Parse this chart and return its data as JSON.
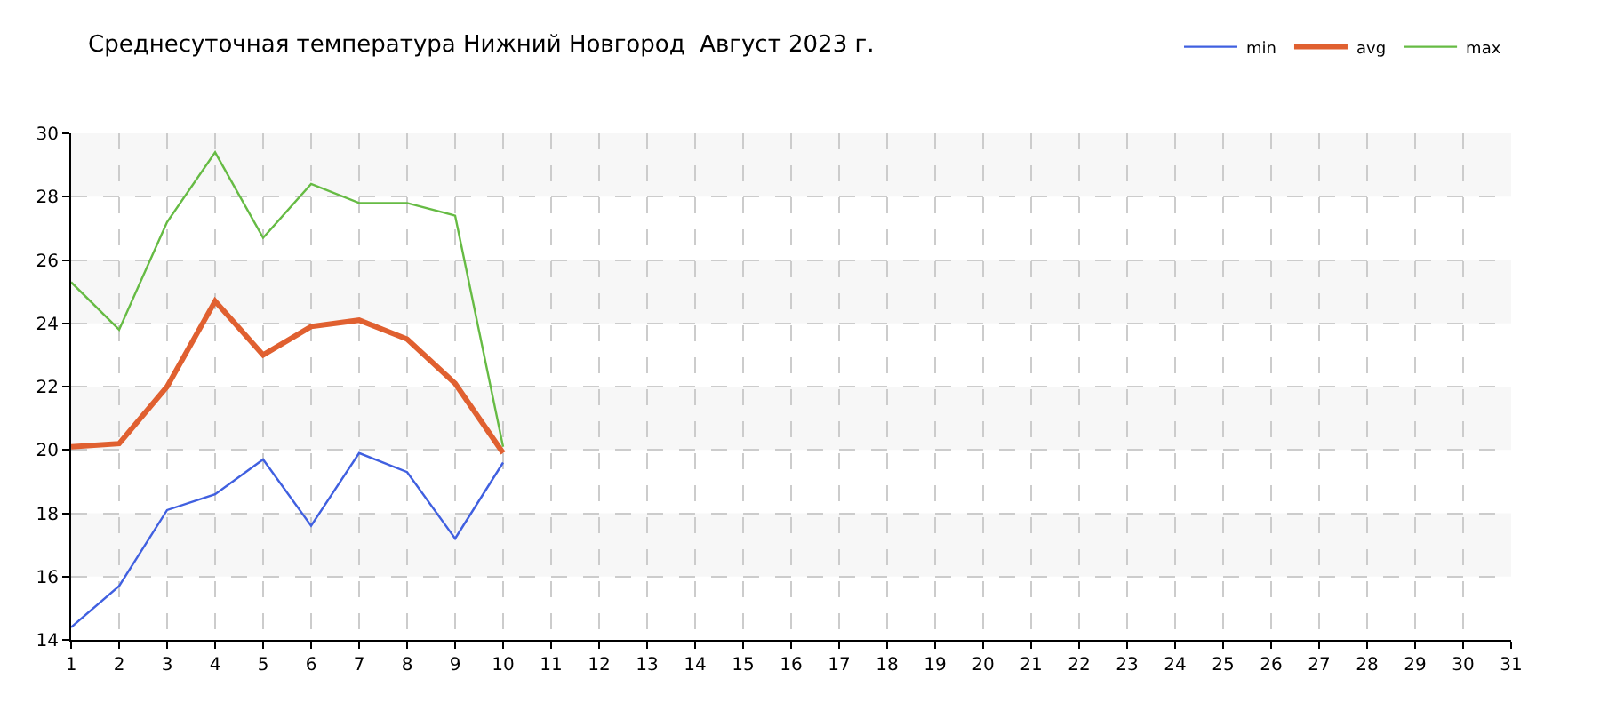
{
  "chart_data": {
    "type": "line",
    "title": "Среднесуточная температура Нижний Новгород  Август 2023 г.",
    "x": [
      1,
      2,
      3,
      4,
      5,
      6,
      7,
      8,
      9,
      10
    ],
    "series": [
      {
        "name": "min",
        "color": "#4060e0",
        "values": [
          14.4,
          15.7,
          18.1,
          18.6,
          19.7,
          17.6,
          19.9,
          19.3,
          17.2,
          19.6
        ]
      },
      {
        "name": "avg",
        "color": "#e06030",
        "values": [
          20.1,
          20.2,
          22.0,
          24.7,
          23.0,
          23.9,
          24.1,
          23.5,
          22.1,
          19.9
        ]
      },
      {
        "name": "max",
        "color": "#66bb44",
        "values": [
          25.3,
          23.8,
          27.2,
          29.4,
          26.7,
          28.4,
          27.8,
          27.8,
          27.4,
          20.1
        ]
      }
    ],
    "xlim": [
      1,
      31
    ],
    "xticks": [
      1,
      2,
      3,
      4,
      5,
      6,
      7,
      8,
      9,
      10,
      11,
      12,
      13,
      14,
      15,
      16,
      17,
      18,
      19,
      20,
      21,
      22,
      23,
      24,
      25,
      26,
      27,
      28,
      29,
      30,
      31
    ],
    "ylim": [
      14,
      30
    ],
    "yticks": [
      14,
      16,
      18,
      20,
      22,
      24,
      26,
      28,
      30
    ],
    "bands": [
      {
        "axis": "y",
        "from": 16,
        "to": 18,
        "color": "#f7f7f7"
      },
      {
        "axis": "y",
        "from": 20,
        "to": 22,
        "color": "#f7f7f7"
      },
      {
        "axis": "y",
        "from": 24,
        "to": 26,
        "color": "#f7f7f7"
      },
      {
        "axis": "y",
        "from": 28,
        "to": 30,
        "color": "#f7f7f7"
      }
    ],
    "grid": true,
    "legend": "top right",
    "marker": "none",
    "line_style": "solid"
  }
}
